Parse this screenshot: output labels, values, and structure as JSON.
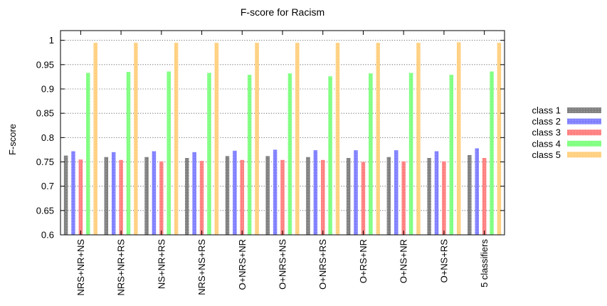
{
  "chart_data": {
    "type": "bar",
    "title": "F-score for Racism",
    "xlabel": "",
    "ylabel": "F-score",
    "ylim": [
      0.6,
      1.02
    ],
    "yticks": [
      "0.6",
      "0.65",
      "0.7",
      "0.75",
      "0.8",
      "0.85",
      "0.9",
      "0.95",
      "1"
    ],
    "grid": true,
    "legend_position": "right",
    "categories": [
      "NRS+NR+NS",
      "NRS+NR+RS",
      "NS+NR+RS",
      "NRS+NS+RS",
      "O+NRS+NR",
      "O+NRS+NS",
      "O+NRS+RS",
      "O+RS+NR",
      "O+NS+NR",
      "O+NS+RS",
      "5 classifiers"
    ],
    "series": [
      {
        "name": "class 1",
        "color": "#808080",
        "values": [
          0.763,
          0.76,
          0.76,
          0.758,
          0.762,
          0.762,
          0.76,
          0.758,
          0.76,
          0.758,
          0.764
        ]
      },
      {
        "name": "class 2",
        "color": "#8080ff",
        "values": [
          0.772,
          0.77,
          0.772,
          0.77,
          0.773,
          0.775,
          0.774,
          0.774,
          0.774,
          0.772,
          0.778
        ]
      },
      {
        "name": "class 3",
        "color": "#ff8080",
        "values": [
          0.755,
          0.754,
          0.751,
          0.752,
          0.754,
          0.754,
          0.754,
          0.75,
          0.751,
          0.751,
          0.758
        ]
      },
      {
        "name": "class 4",
        "color": "#80ff80",
        "values": [
          0.933,
          0.935,
          0.936,
          0.933,
          0.929,
          0.932,
          0.926,
          0.932,
          0.933,
          0.929,
          0.936
        ]
      },
      {
        "name": "class 5",
        "color": "#ffd080",
        "values": [
          0.995,
          0.995,
          0.995,
          0.995,
          0.995,
          0.995,
          0.995,
          0.995,
          0.995,
          0.996,
          0.995
        ]
      }
    ]
  }
}
